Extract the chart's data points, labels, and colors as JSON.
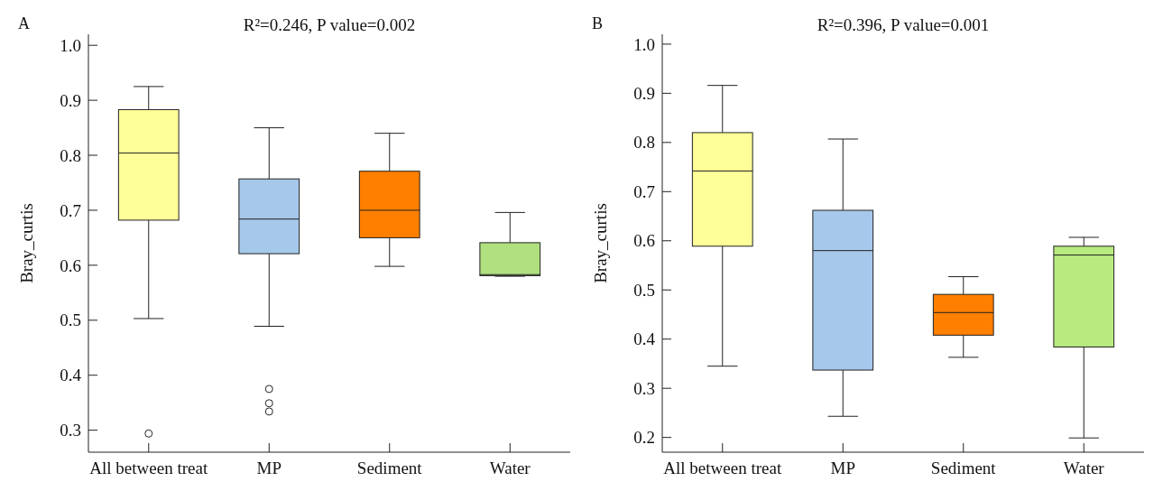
{
  "chart_data": [
    {
      "type": "box",
      "title": "R²=0.246, P value=0.002",
      "ylabel": "Bray_curtis",
      "annotations": [
        "A"
      ],
      "categories": [
        "All between treat",
        "MP",
        "Sediment",
        "Water"
      ],
      "colors": [
        "#ffff99",
        "#a6c8ea",
        "#ff7f00",
        "#b0e080"
      ],
      "ylim": [
        0.26,
        1.02
      ],
      "yticks": [
        0.3,
        0.4,
        0.5,
        0.6,
        0.7,
        0.8,
        0.9,
        {
          "value": 1,
          "label": "1.0"
        }
      ],
      "boxes": [
        {
          "low": 0.503,
          "q1": 0.682,
          "median": 0.804,
          "q3": 0.883,
          "high": 0.925,
          "outliers": [
            0.294
          ]
        },
        {
          "low": 0.489,
          "q1": 0.621,
          "median": 0.684,
          "q3": 0.757,
          "high": 0.85,
          "outliers": [
            0.375,
            0.349,
            0.334
          ]
        },
        {
          "low": 0.598,
          "q1": 0.65,
          "median": 0.7,
          "q3": 0.771,
          "high": 0.84
        },
        {
          "low": 0.58,
          "q1": 0.581,
          "median": 0.583,
          "q3": 0.641,
          "high": 0.696
        }
      ]
    },
    {
      "type": "box",
      "title": "R²=0.396, P value=0.001",
      "ylabel": "Bray_curtis",
      "annotations": [
        "B"
      ],
      "categories": [
        "All between treat",
        "MP",
        "Sediment",
        "Water"
      ],
      "colors": [
        "#ffff99",
        "#a6c8ea",
        "#ff7f00",
        "#b8ea80"
      ],
      "ylim": [
        0.17,
        1.02
      ],
      "yticks": [
        0.2,
        0.3,
        0.4,
        0.5,
        0.6,
        0.7,
        0.8,
        0.9,
        {
          "value": 1,
          "label": "1.0"
        }
      ],
      "boxes": [
        {
          "low": 0.345,
          "q1": 0.589,
          "median": 0.742,
          "q3": 0.82,
          "high": 0.916
        },
        {
          "low": 0.243,
          "q1": 0.337,
          "median": 0.58,
          "q3": 0.662,
          "high": 0.807
        },
        {
          "low": 0.363,
          "q1": 0.408,
          "median": 0.454,
          "q3": 0.491,
          "high": 0.527
        },
        {
          "low": 0.199,
          "q1": 0.384,
          "median": 0.571,
          "q3": 0.589,
          "high": 0.607
        }
      ]
    }
  ]
}
